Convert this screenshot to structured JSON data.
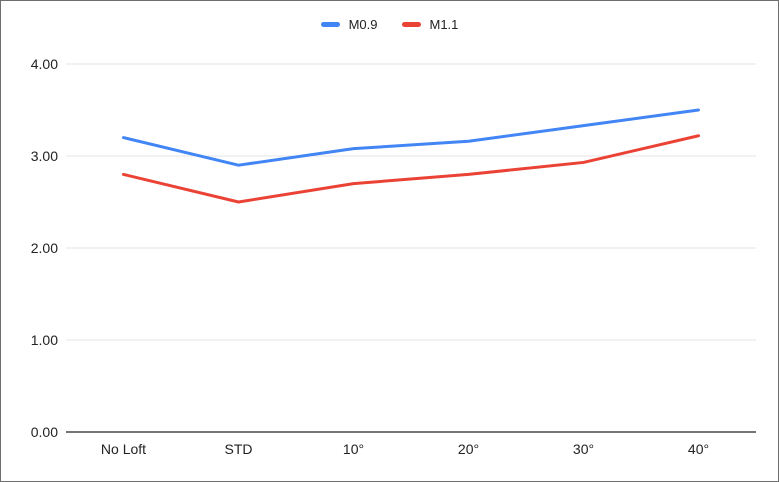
{
  "colors": {
    "series_blue": "#4285F4",
    "series_red": "#EA4335",
    "gridline": "#E6E6E6",
    "axis_line": "#757575",
    "text": "#222222",
    "frame_border": "#6E6E6E",
    "background": "#FFFFFF"
  },
  "legend": {
    "items": [
      {
        "label": "M0.9",
        "color": "#4285F4"
      },
      {
        "label": "M1.1",
        "color": "#EA4335"
      }
    ]
  },
  "chart_data": {
    "type": "line",
    "title": "",
    "xlabel": "",
    "ylabel": "",
    "categories": [
      "No Loft",
      "STD",
      "10°",
      "20°",
      "30°",
      "40°"
    ],
    "series": [
      {
        "name": "M0.9",
        "color": "#4285F4",
        "values": [
          3.2,
          2.9,
          3.08,
          3.16,
          3.33,
          3.5
        ]
      },
      {
        "name": "M1.1",
        "color": "#EA4335",
        "values": [
          2.8,
          2.5,
          2.7,
          2.8,
          2.93,
          3.22
        ]
      }
    ],
    "ylim": [
      0,
      4
    ],
    "yticks": [
      0,
      1,
      2,
      3,
      4
    ],
    "ytick_labels": [
      "0.00",
      "1.00",
      "2.00",
      "3.00",
      "4.00"
    ],
    "grid": true,
    "legend_position": "top-center"
  }
}
